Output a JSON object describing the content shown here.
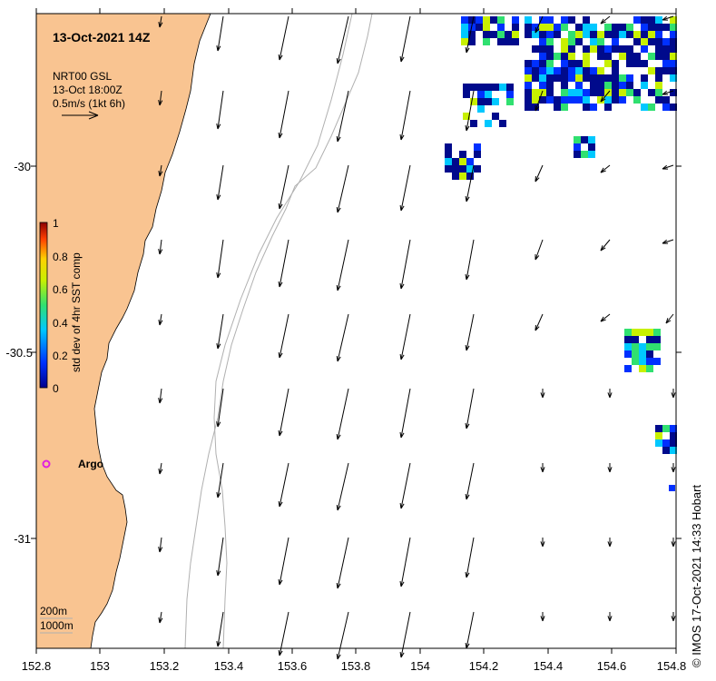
{
  "map": {
    "title": "13-Oct-2021 14Z",
    "product": "NRT00 GSL",
    "product_time": "13-Oct 18:00Z",
    "arrow_scale": "0.5m/s (1kt 6h)",
    "argo_label": "Argo",
    "isobath_labels": [
      "200m",
      "1000m"
    ],
    "credit": "© IMOS 17-Oct-2021 14:33 Hobart",
    "colorbar": {
      "label": "std dev of 4hr SST comp",
      "ticks": [
        "1",
        "0.8",
        "0.6",
        "0.4",
        "0.2",
        "0"
      ],
      "range": [
        0,
        1
      ]
    },
    "lon_ticks": [
      "152.8",
      "153",
      "153.2",
      "153.4",
      "153.6",
      "153.8",
      "154",
      "154.2",
      "154.4",
      "154.6",
      "154.8"
    ],
    "lat_ticks": [
      "-30",
      "-30.5",
      "-31"
    ],
    "lon_range": [
      152.8,
      154.8
    ],
    "lat_range": [
      -31.3,
      -29.6
    ],
    "colors": {
      "land": "#f9c491",
      "isobath": "#b0b0b0",
      "arrow": "#000000",
      "argo": "#e020e0",
      "sst_low": "#000a8c",
      "sst_high": "#8c0000"
    }
  }
}
